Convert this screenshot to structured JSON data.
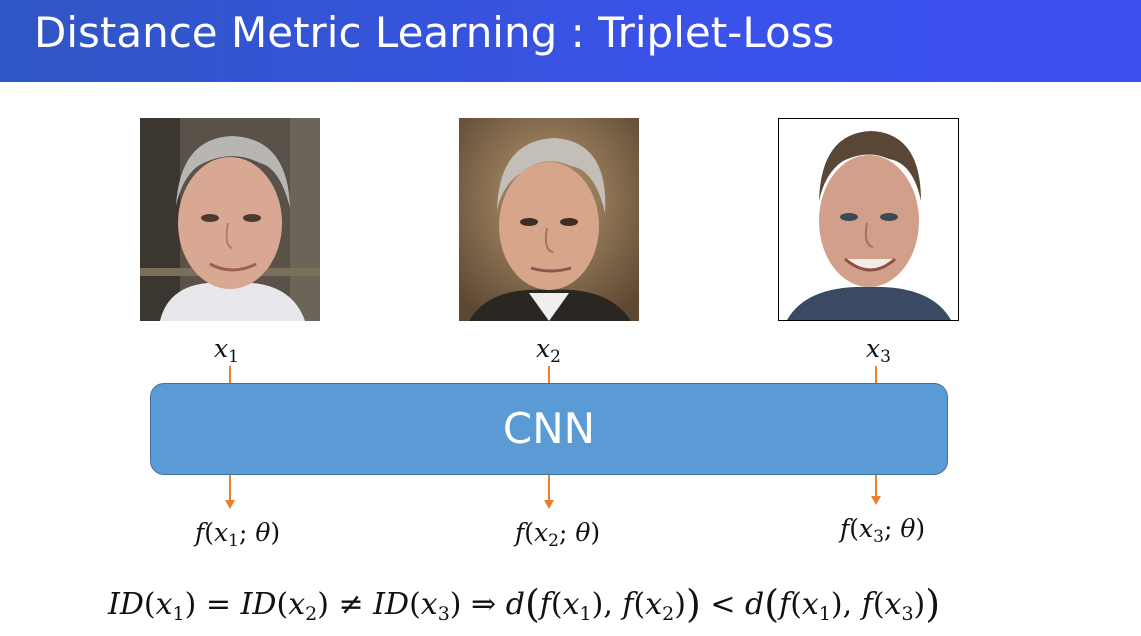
{
  "header": {
    "title": "Distance Metric Learning : Triplet-Loss",
    "color": "#3a52e8"
  },
  "inputs": [
    {
      "var": "x",
      "sub": "1",
      "photo": "face-photo-older-man-gray-hair"
    },
    {
      "var": "x",
      "sub": "2",
      "photo": "face-photo-older-man-gray-hair"
    },
    {
      "var": "x",
      "sub": "3",
      "photo": "face-photo-younger-man-smiling"
    }
  ],
  "network": {
    "label": "CNN",
    "color": "#5b9bd5"
  },
  "outputs": [
    {
      "fn": "f",
      "var": "x",
      "sub": "1",
      "param": "θ"
    },
    {
      "fn": "f",
      "var": "x",
      "sub": "2",
      "param": "θ"
    },
    {
      "fn": "f",
      "var": "x",
      "sub": "3",
      "param": "θ"
    }
  ],
  "arrow_color": "#ed7d31",
  "equation": {
    "id": "ID",
    "eq": "=",
    "neq": "≠",
    "implies": "⇒",
    "lt": "<",
    "d": "d",
    "f": "f",
    "x": "x",
    "s1": "1",
    "s2": "2",
    "s3": "3"
  }
}
